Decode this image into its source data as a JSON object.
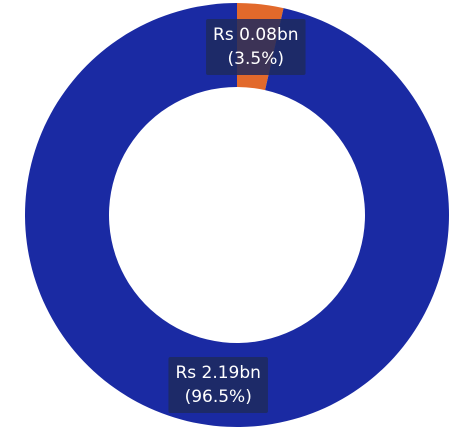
{
  "chart_data": {
    "type": "donut",
    "categories": [
      null,
      null
    ],
    "values": [
      0.08,
      2.19
    ],
    "value_labels": [
      "Rs 0.08bn",
      "Rs 2.19bn"
    ],
    "percentages": [
      3.5,
      96.5
    ],
    "percentage_labels": [
      "(3.5%)",
      "(96.5%)"
    ],
    "colors": [
      "#e2692b",
      "#1a2aa3"
    ]
  }
}
